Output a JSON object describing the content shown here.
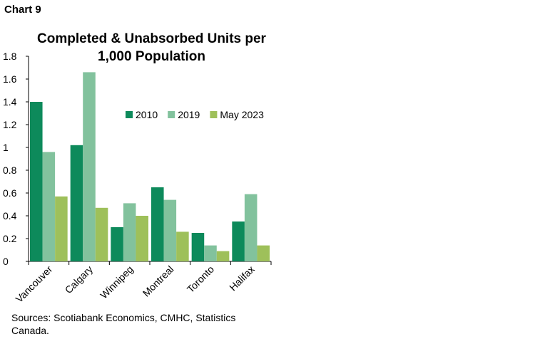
{
  "label": "Chart 9",
  "source": "Sources: Scotiabank Economics, CMHC, Statistics Canada.",
  "chart_data": {
    "type": "bar",
    "title": "Completed & Unabsorbed Units per 1,000 Population",
    "xlabel": "",
    "ylabel": "",
    "categories": [
      "Vancouver",
      "Calgary",
      "Winnipeg",
      "Montreal",
      "Toronto",
      "Halifax"
    ],
    "series": [
      {
        "name": "2010",
        "color": "#0d8a5b",
        "values": [
          1.4,
          1.02,
          0.3,
          0.65,
          0.25,
          0.35
        ]
      },
      {
        "name": "2019",
        "color": "#82c29d",
        "values": [
          0.96,
          1.66,
          0.51,
          0.54,
          0.14,
          0.59
        ]
      },
      {
        "name": "May 2023",
        "color": "#9ec05a",
        "values": [
          0.57,
          0.47,
          0.4,
          0.26,
          0.09,
          0.14
        ]
      }
    ],
    "ylim": [
      0,
      1.8
    ],
    "yticks": [
      "0",
      "0.2",
      "0.4",
      "0.6",
      "0.8",
      "1",
      "1.2",
      "1.4",
      "1.6",
      "1.8"
    ],
    "grid": false,
    "legend": "upper-right inside plot"
  }
}
